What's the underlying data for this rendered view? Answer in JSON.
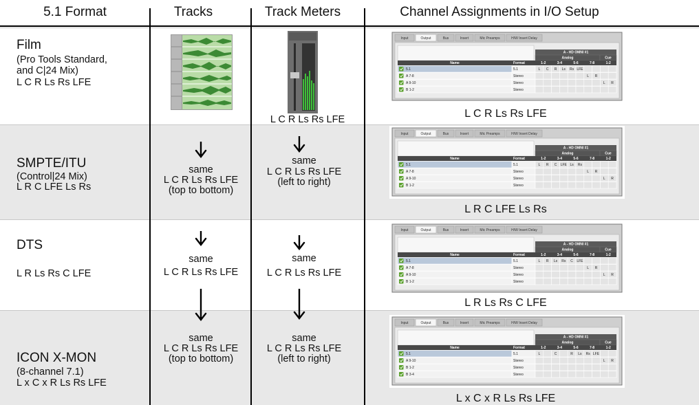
{
  "header": [
    "5.1 Format",
    "Tracks",
    "Track Meters",
    "Channel Assignments in I/O Setup"
  ],
  "rows": [
    {
      "format": {
        "name": "Film",
        "notes": [
          "(Pro Tools Standard,",
          "and C|24 Mix)"
        ],
        "order": "L C R Ls Rs LFE"
      },
      "meters": {
        "lines": [
          "L C R Ls Rs LFE"
        ]
      },
      "io": {
        "tabs": [
          "Input",
          "Output",
          "Bus",
          "Insert",
          "Mic Preamps",
          "H/W Insert Delay"
        ],
        "device": "A - HD OMNI #1",
        "group": "Analog",
        "cue": "Cue",
        "columns": [
          "Name",
          "Format",
          "1-2",
          "3-4",
          "5-6",
          "7-8",
          "1-2"
        ],
        "rows": [
          {
            "name": "5.1",
            "format": "5.1",
            "cells": [
              "L",
              "C",
              "R",
              "Ls",
              "Rs",
              "LFE",
              null,
              null,
              null,
              null
            ]
          },
          {
            "name": "A 7-8",
            "format": "Stereo",
            "cells": [
              null,
              null,
              null,
              null,
              null,
              null,
              "L",
              "R",
              null,
              null
            ]
          },
          {
            "name": "A 9-10",
            "format": "Stereo",
            "cells": [
              null,
              null,
              null,
              null,
              null,
              null,
              null,
              null,
              "L",
              "R"
            ]
          },
          {
            "name": "B 1-2",
            "format": "Stereo",
            "cells": [
              null,
              null,
              null,
              null,
              null,
              null,
              null,
              null,
              null,
              null
            ]
          }
        ],
        "caption": "L C R Ls Rs LFE"
      }
    },
    {
      "format": {
        "name": "SMPTE/ITU",
        "notes": [
          "(Control|24 Mix)"
        ],
        "order": "L R C LFE Ls Rs"
      },
      "tracks": {
        "lines": [
          "same",
          "L C R Ls Rs LFE",
          "(top to bottom)"
        ]
      },
      "meters": {
        "lines": [
          "same",
          "L C R Ls Rs LFE",
          "(left to right)"
        ]
      },
      "io": {
        "tabs": [
          "Input",
          "Output",
          "Bus",
          "Insert",
          "Mic Preamps",
          "H/W Insert Delay"
        ],
        "device": "A - HD OMNI #1",
        "group": "Analog",
        "cue": "Cue",
        "columns": [
          "Name",
          "Format",
          "1-2",
          "3-4",
          "5-6",
          "7-8",
          "1-2"
        ],
        "rows": [
          {
            "name": "5.1",
            "format": "5.1",
            "cells": [
              "L",
              "R",
              "C",
              "LFE",
              "Ls",
              "Rs",
              null,
              null,
              null,
              null
            ]
          },
          {
            "name": "A 7-8",
            "format": "Stereo",
            "cells": [
              null,
              null,
              null,
              null,
              null,
              null,
              "L",
              "R",
              null,
              null
            ]
          },
          {
            "name": "A 9-10",
            "format": "Stereo",
            "cells": [
              null,
              null,
              null,
              null,
              null,
              null,
              null,
              null,
              "L",
              "R"
            ]
          },
          {
            "name": "B 1-2",
            "format": "Stereo",
            "cells": [
              null,
              null,
              null,
              null,
              null,
              null,
              null,
              null,
              null,
              null
            ]
          }
        ],
        "caption": "L R C LFE Ls Rs"
      }
    },
    {
      "format": {
        "name": "DTS",
        "order": "L R Ls Rs C LFE"
      },
      "tracks": {
        "lines": [
          "same",
          "L C R Ls Rs LFE"
        ]
      },
      "meters": {
        "lines": [
          "same",
          "L C R Ls Rs LFE"
        ]
      },
      "io": {
        "tabs": [
          "Input",
          "Output",
          "Bus",
          "Insert",
          "Mic Preamps",
          "H/W Insert Delay"
        ],
        "device": "A - HD OMNI #1",
        "group": "Analog",
        "cue": "Cue",
        "columns": [
          "Name",
          "Format",
          "1-2",
          "3-4",
          "5-6",
          "7-8",
          "1-2"
        ],
        "rows": [
          {
            "name": "5.1",
            "format": "5.1",
            "cells": [
              "L",
              "R",
              "Ls",
              "Rs",
              "C",
              "LFE",
              null,
              null,
              null,
              null
            ]
          },
          {
            "name": "A 7-8",
            "format": "Stereo",
            "cells": [
              null,
              null,
              null,
              null,
              null,
              null,
              "L",
              "R",
              null,
              null
            ]
          },
          {
            "name": "A 9-10",
            "format": "Stereo",
            "cells": [
              null,
              null,
              null,
              null,
              null,
              null,
              null,
              null,
              "L",
              "R"
            ]
          },
          {
            "name": "B 1-2",
            "format": "Stereo",
            "cells": [
              null,
              null,
              null,
              null,
              null,
              null,
              null,
              null,
              null,
              null
            ]
          }
        ],
        "caption": "L R Ls Rs C LFE"
      }
    },
    {
      "format": {
        "name": "ICON X-MON",
        "notes": [
          "(8-channel 7.1)"
        ],
        "order": "L x C x R Ls Rs LFE"
      },
      "tracks": {
        "lines": [
          "same",
          "L C R Ls Rs LFE",
          "(top to bottom)"
        ]
      },
      "meters": {
        "lines": [
          "same",
          "L C R Ls Rs LFE",
          "(left to right)"
        ]
      },
      "io": {
        "tabs": [
          "Input",
          "Output",
          "Bus",
          "Insert",
          "Mic Preamps",
          "H/W Insert Delay"
        ],
        "device": "A - HD OMNI #1",
        "group": "Analog",
        "cue": "Cue",
        "columns": [
          "Name",
          "Format",
          "1-2",
          "3-4",
          "5-6",
          "7-8",
          "1-2"
        ],
        "rows": [
          {
            "name": "5.1",
            "format": "5.1",
            "cells": [
              "L",
              null,
              "C",
              null,
              "R",
              "Ls",
              "Rs",
              "LFE",
              null,
              null
            ]
          },
          {
            "name": "A 9-10",
            "format": "Stereo",
            "cells": [
              null,
              null,
              null,
              null,
              null,
              null,
              null,
              null,
              "L",
              "R"
            ]
          },
          {
            "name": "B 1-2",
            "format": "Stereo",
            "cells": [
              null,
              null,
              null,
              null,
              null,
              null,
              null,
              null,
              null,
              null
            ]
          },
          {
            "name": "B 3-4",
            "format": "Stereo",
            "cells": [
              null,
              null,
              null,
              null,
              null,
              null,
              null,
              null,
              null,
              null
            ]
          }
        ],
        "caption": "L x C x R Ls Rs LFE"
      }
    }
  ]
}
